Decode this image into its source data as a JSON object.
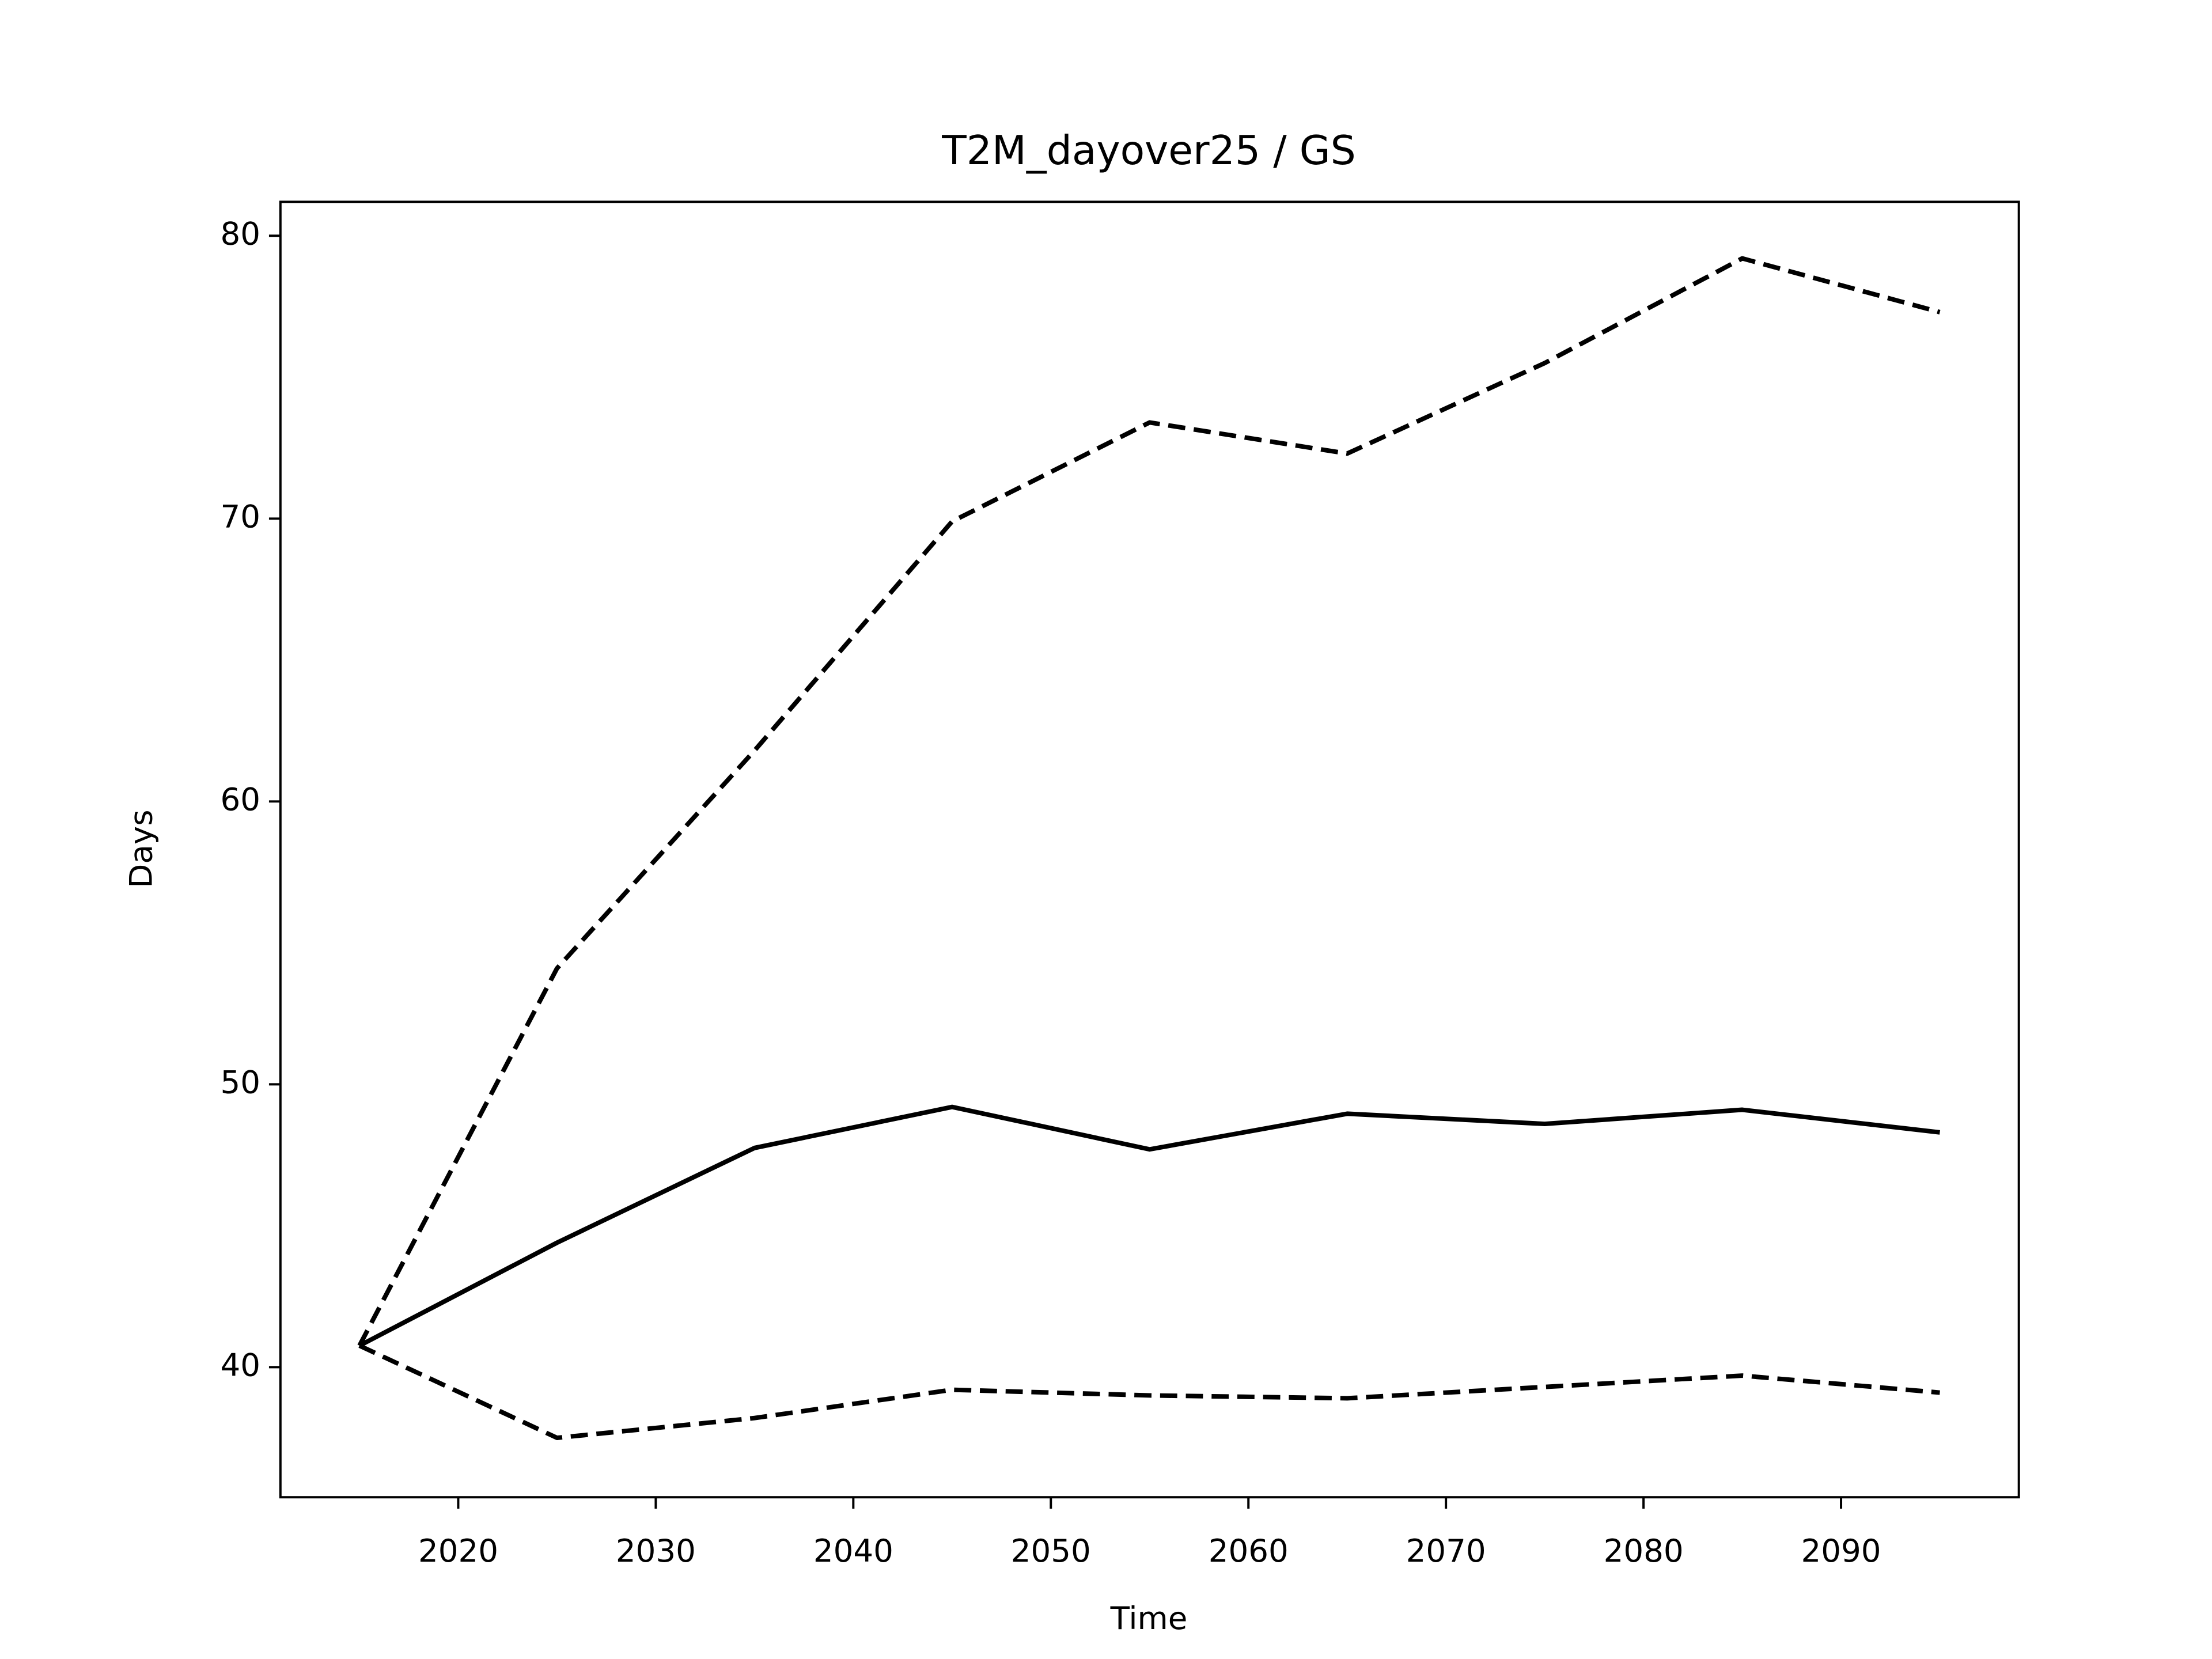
{
  "chart_data": {
    "type": "line",
    "title": "T2M_dayover25 / GS",
    "xlabel": "Time",
    "ylabel": "Days",
    "x": [
      2015,
      2025,
      2035,
      2045,
      2055,
      2065,
      2075,
      2085,
      2095
    ],
    "series": [
      {
        "color": "#000000",
        "dash": false,
        "values": [
          40.76,
          44.4,
          47.75,
          49.2,
          47.7,
          48.96,
          48.6,
          49.1,
          48.3
        ]
      },
      {
        "color": "#000000",
        "dash": true,
        "values": [
          40.76,
          54.1,
          61.8,
          69.9,
          73.4,
          72.3,
          75.5,
          79.2,
          77.3
        ]
      },
      {
        "color": "#000000",
        "dash": true,
        "values": [
          40.76,
          37.5,
          38.2,
          39.2,
          39.0,
          38.9,
          39.3,
          39.7,
          39.1
        ]
      }
    ],
    "xlim": [
      2011,
      2099
    ],
    "ylim": [
      35.4,
      81.2
    ],
    "xticks": [
      2020,
      2030,
      2040,
      2050,
      2060,
      2070,
      2080,
      2090
    ],
    "yticks": [
      40,
      50,
      60,
      70,
      80
    ],
    "grid": false
  }
}
